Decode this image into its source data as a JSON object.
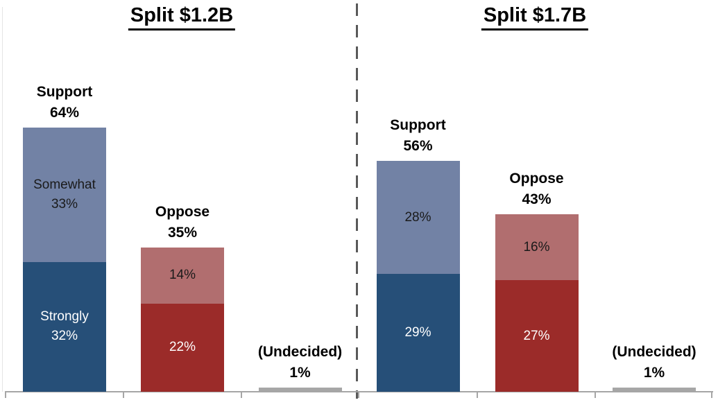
{
  "chart_data": [
    {
      "type": "bar",
      "stacked": true,
      "orientation": "vertical",
      "title": "Split $1.2B",
      "value_unit": "%",
      "legend": "none",
      "gridlines": false,
      "y_axis_visible": false,
      "categories": [
        "Support",
        "Oppose",
        "(Undecided)"
      ],
      "bars": [
        {
          "category": "Support",
          "total": 64,
          "header_lines": [
            "Support",
            "64%"
          ],
          "segments": [
            {
              "name": "strongly-support",
              "value": 32,
              "label_lines": [
                "Strongly",
                "32%"
              ],
              "color": "#264F78",
              "text_color": "#FFFFFF"
            },
            {
              "name": "somewhat-support",
              "value": 33,
              "label_lines": [
                "Somewhat",
                "33%"
              ],
              "color": "#7282A5",
              "text_color": "#1A1A1A"
            }
          ]
        },
        {
          "category": "Oppose",
          "total": 35,
          "header_lines": [
            "Oppose",
            "35%"
          ],
          "segments": [
            {
              "name": "strongly-oppose",
              "value": 22,
              "label_lines": [
                "22%"
              ],
              "color": "#9B2B29",
              "text_color": "#FFFFFF"
            },
            {
              "name": "somewhat-oppose",
              "value": 14,
              "label_lines": [
                "14%"
              ],
              "color": "#B16E6F",
              "text_color": "#1A1A1A"
            }
          ]
        },
        {
          "category": "(Undecided)",
          "total": 1,
          "header_lines": [
            "(Undecided)",
            "1%"
          ],
          "segments": [
            {
              "name": "undecided",
              "value": 1,
              "label_lines": [],
              "color": "#A6A6A6",
              "text_color": "#1A1A1A"
            }
          ]
        }
      ]
    },
    {
      "type": "bar",
      "stacked": true,
      "orientation": "vertical",
      "title": "Split $1.7B",
      "value_unit": "%",
      "legend": "none",
      "gridlines": false,
      "y_axis_visible": false,
      "categories": [
        "Support",
        "Oppose",
        "(Undecided)"
      ],
      "bars": [
        {
          "category": "Support",
          "total": 56,
          "header_lines": [
            "Support",
            "56%"
          ],
          "segments": [
            {
              "name": "strongly-support",
              "value": 29,
              "label_lines": [
                "29%"
              ],
              "color": "#264F78",
              "text_color": "#FFFFFF"
            },
            {
              "name": "somewhat-support",
              "value": 28,
              "label_lines": [
                "28%"
              ],
              "color": "#7282A5",
              "text_color": "#1A1A1A"
            }
          ]
        },
        {
          "category": "Oppose",
          "total": 43,
          "header_lines": [
            "Oppose",
            "43%"
          ],
          "segments": [
            {
              "name": "strongly-oppose",
              "value": 27,
              "label_lines": [
                "27%"
              ],
              "color": "#9B2B29",
              "text_color": "#FFFFFF"
            },
            {
              "name": "somewhat-oppose",
              "value": 16,
              "label_lines": [
                "16%"
              ],
              "color": "#B16E6F",
              "text_color": "#1A1A1A"
            }
          ]
        },
        {
          "category": "(Undecided)",
          "total": 1,
          "header_lines": [
            "(Undecided)",
            "1%"
          ],
          "segments": [
            {
              "name": "undecided",
              "value": 1,
              "label_lines": [],
              "color": "#A6A6A6",
              "text_color": "#1A1A1A"
            }
          ]
        }
      ]
    }
  ],
  "colors": {
    "strongly_support": "#264F78",
    "somewhat_support": "#7282A5",
    "strongly_oppose": "#9B2B29",
    "somewhat_oppose": "#B16E6F",
    "undecided": "#A6A6A6",
    "axis": "#A6A6A6",
    "divider": "#595959",
    "label_text": "#000000",
    "inverse_text": "#FFFFFF"
  }
}
